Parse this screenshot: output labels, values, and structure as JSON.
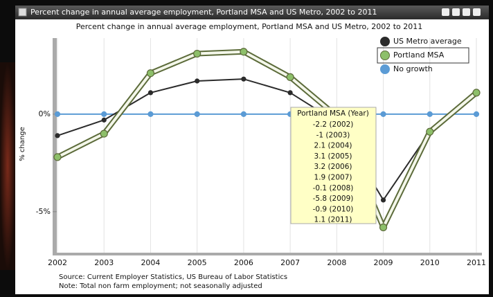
{
  "window_title": "Percent change in annual average employment, Portland MSA and US Metro, 2002 to 2011",
  "chart_data": {
    "type": "line",
    "title": "Percent change in annual average employment, Portland MSA and US Metro, 2002 to 2011",
    "y_label": "% change",
    "x": [
      2002,
      2003,
      2004,
      2005,
      2006,
      2007,
      2008,
      2009,
      2010,
      2011
    ],
    "xlim": [
      2002,
      2011
    ],
    "xticks": [
      2002,
      2003,
      2004,
      2005,
      2006,
      2007,
      2008,
      2009,
      2010,
      2011
    ],
    "ylim": [
      -7.1,
      3.9
    ],
    "yticks": [
      {
        "value": 0,
        "label": "0%"
      },
      {
        "value": -5,
        "label": "-5%"
      }
    ],
    "grid": "x",
    "legend": "top-right",
    "series": [
      {
        "name": "US Metro average",
        "color": "#2b2b2b",
        "values": [
          -1.1,
          -0.3,
          1.1,
          1.7,
          1.8,
          1.1,
          -0.4,
          -4.4,
          -0.9,
          1.1
        ]
      },
      {
        "name": "Portland MSA",
        "color": "#8dbf6a",
        "values": [
          -2.2,
          -1,
          2.1,
          3.1,
          3.2,
          1.9,
          -0.1,
          -5.8,
          -0.9,
          1.1
        ]
      },
      {
        "name": "No growth",
        "color": "#5b9bd5",
        "values": [
          0,
          0,
          0,
          0,
          0,
          0,
          0,
          0,
          0,
          0
        ]
      }
    ],
    "tooltip": {
      "title": "Portland MSA (Year)",
      "items": [
        "-2.2 (2002)",
        "-1 (2003)",
        "2.1 (2004)",
        "3.1 (2005)",
        "3.2 (2006)",
        "1.9 (2007)",
        "-0.1 (2008)",
        "-5.8 (2009)",
        "-0.9 (2010)",
        "1.1 (2011)"
      ]
    }
  },
  "source": "Source: Current Employer Statistics, US Bureau of Labor Statistics",
  "note": "Note: Total non farm employment; not seasonally adjusted"
}
